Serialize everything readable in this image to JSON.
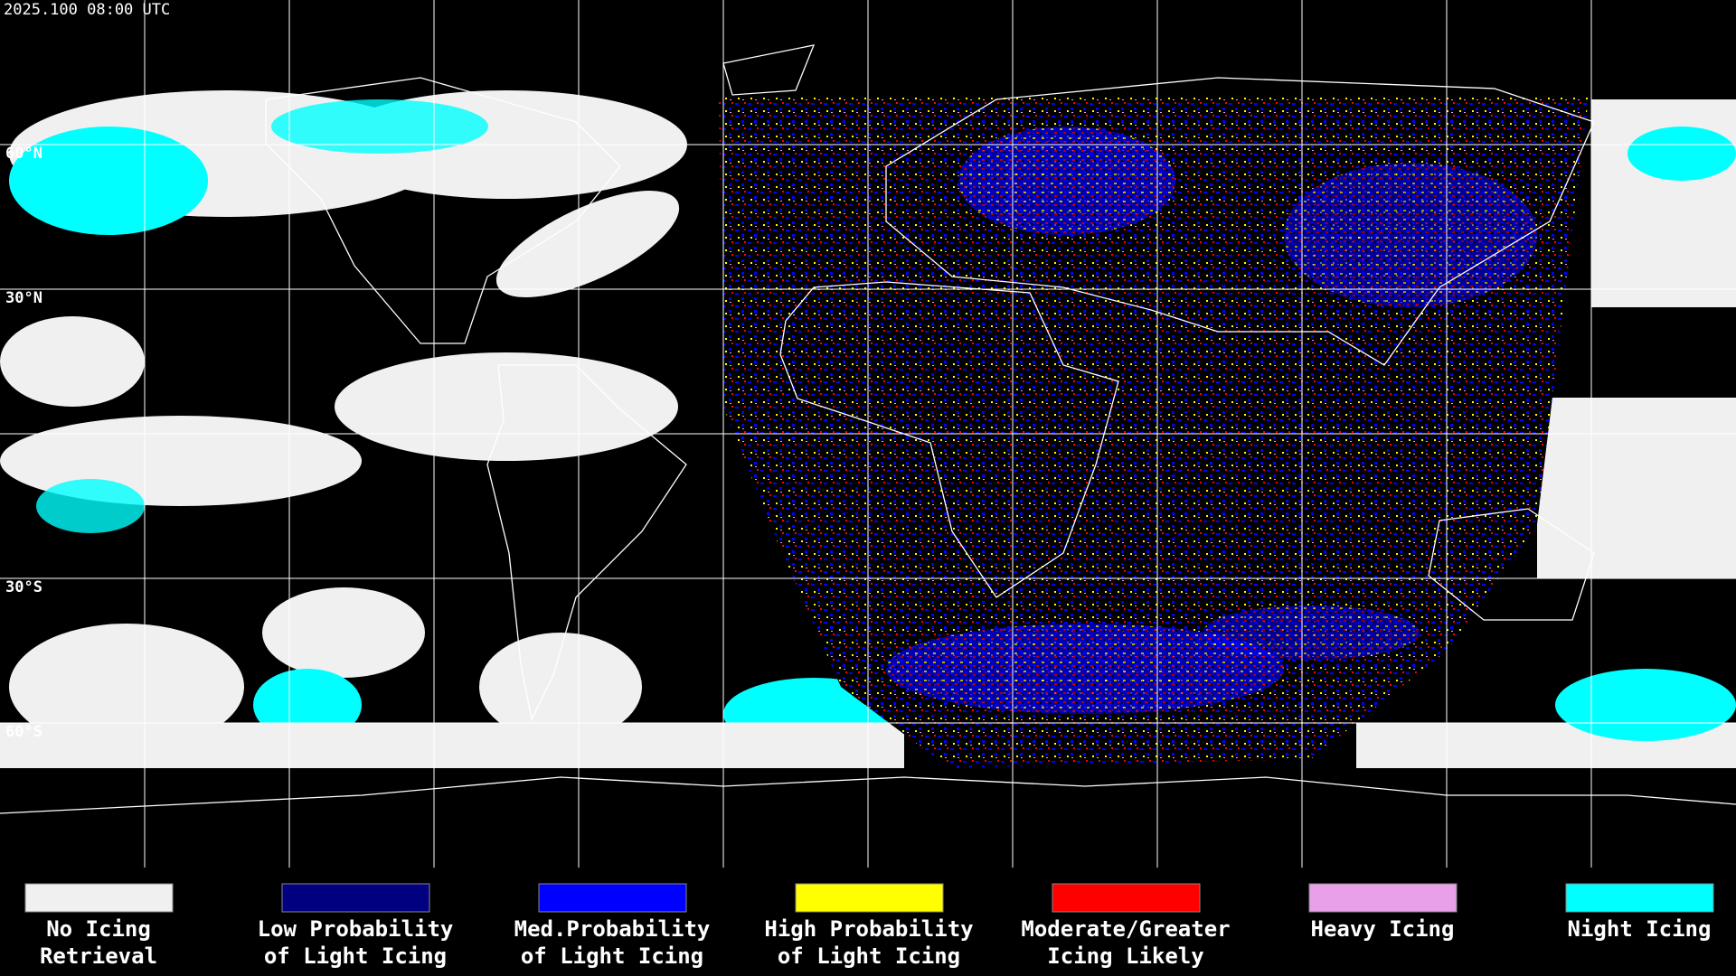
{
  "timestamp": "2025.100 08:00 UTC",
  "lat_labels": [
    "60°N",
    "30°N",
    "30°S",
    "60°S"
  ],
  "legend": [
    {
      "color": "#f0f0f0",
      "lines": [
        "No Icing",
        "Retrieval"
      ]
    },
    {
      "color": "#000080",
      "lines": [
        "Low Probability",
        "of Light Icing"
      ]
    },
    {
      "color": "#0000ff",
      "lines": [
        "Med.Probability",
        "of Light Icing"
      ]
    },
    {
      "color": "#ffff00",
      "lines": [
        "High Probability",
        "of Light Icing"
      ]
    },
    {
      "color": "#ff0000",
      "lines": [
        "Moderate/Greater",
        "Icing Likely"
      ]
    },
    {
      "color": "#e8a0e8",
      "lines": [
        "Heavy Icing"
      ]
    },
    {
      "color": "#00ffff",
      "lines": [
        "Night Icing"
      ]
    }
  ]
}
